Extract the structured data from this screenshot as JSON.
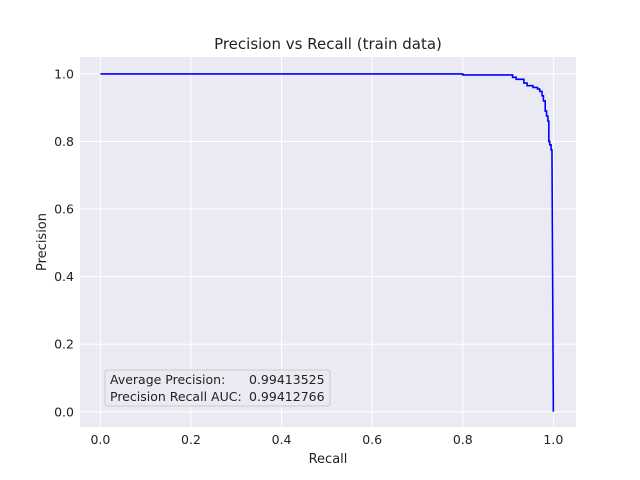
{
  "chart_data": {
    "type": "line",
    "title": "Precision vs Recall (train data)",
    "xlabel": "Recall",
    "ylabel": "Precision",
    "xlim": [
      -0.045,
      1.05
    ],
    "ylim": [
      -0.045,
      1.05
    ],
    "x_ticks": [
      0.0,
      0.2,
      0.4,
      0.6,
      0.8,
      1.0
    ],
    "y_ticks": [
      0.0,
      0.2,
      0.4,
      0.6,
      0.8,
      1.0
    ],
    "x_tick_labels": [
      "0.0",
      "0.2",
      "0.4",
      "0.6",
      "0.8",
      "1.0"
    ],
    "y_tick_labels": [
      "0.0",
      "0.2",
      "0.4",
      "0.6",
      "0.8",
      "1.0"
    ],
    "grid": true,
    "series": [
      {
        "color": "#0000ff",
        "x": [
          0.0,
          0.8,
          0.8,
          0.91,
          0.91,
          0.918,
          0.918,
          0.935,
          0.935,
          0.942,
          0.942,
          0.955,
          0.955,
          0.965,
          0.965,
          0.97,
          0.97,
          0.975,
          0.975,
          0.978,
          0.978,
          0.982,
          0.982,
          0.985,
          0.985,
          0.988,
          0.988,
          0.99,
          0.99,
          0.992,
          0.992,
          0.995,
          0.995,
          0.997,
          0.997,
          1.0
        ],
        "y": [
          1.0,
          1.0,
          0.997,
          0.997,
          0.99,
          0.99,
          0.984,
          0.984,
          0.973,
          0.973,
          0.965,
          0.965,
          0.96,
          0.96,
          0.955,
          0.955,
          0.948,
          0.948,
          0.935,
          0.935,
          0.92,
          0.92,
          0.89,
          0.89,
          0.875,
          0.875,
          0.86,
          0.86,
          0.8,
          0.8,
          0.79,
          0.79,
          0.775,
          0.775,
          0.76,
          0.0
        ]
      }
    ],
    "legend": {
      "position": "lower-left",
      "entries": [
        {
          "label": "Average Precision:",
          "value": "0.99413525"
        },
        {
          "label": "Precision Recall AUC:",
          "value": "0.99412766"
        }
      ]
    }
  }
}
